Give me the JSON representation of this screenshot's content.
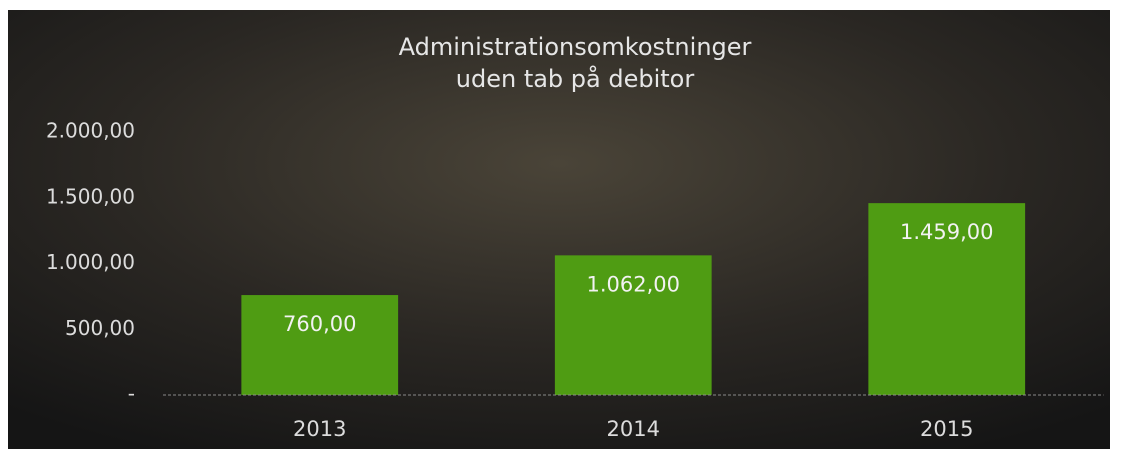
{
  "chart_data": {
    "type": "bar",
    "title": [
      "Administrationsomkostninger",
      "uden tab på debitor"
    ],
    "categories": [
      "2013",
      "2014",
      "2015"
    ],
    "values": [
      760,
      1062,
      1459
    ],
    "value_labels": [
      "760,00",
      "1.062,00",
      "1.459,00"
    ],
    "color": "#4f9c13",
    "ylim": [
      0,
      2000
    ],
    "yticks": [
      {
        "value": 0,
        "label": "-"
      },
      {
        "value": 500,
        "label": "500,00"
      },
      {
        "value": 1000,
        "label": "1.000,00"
      },
      {
        "value": 1500,
        "label": "1.500,00"
      },
      {
        "value": 2000,
        "label": "2.000,00"
      }
    ],
    "grid": false
  }
}
